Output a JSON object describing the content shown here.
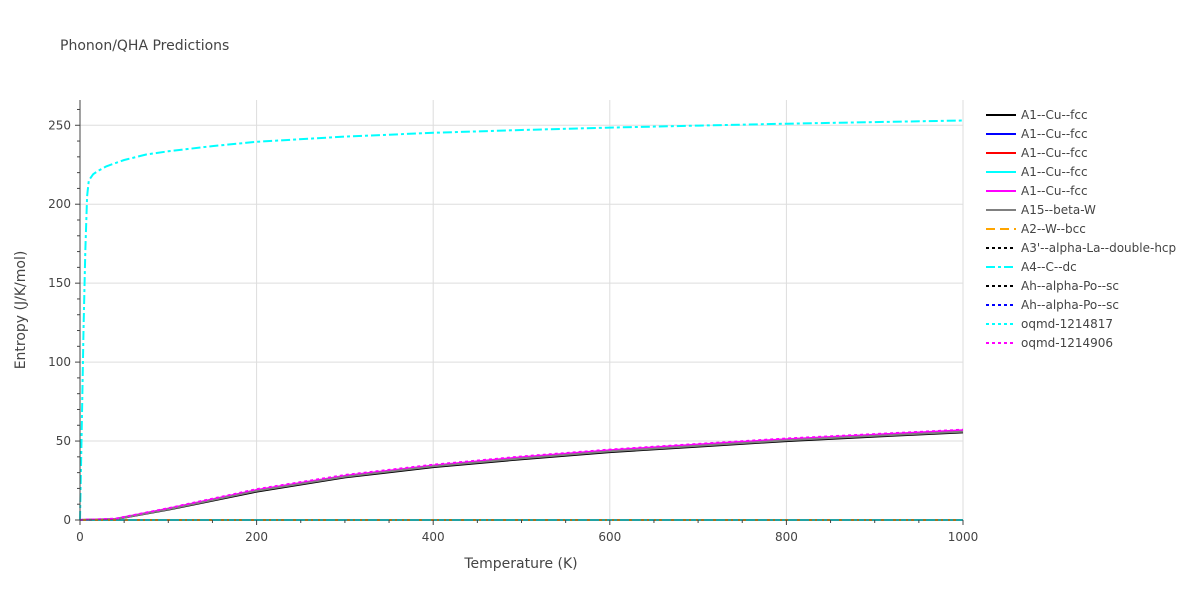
{
  "chart_data": {
    "type": "line",
    "title": "Phonon/QHA Predictions",
    "xlabel": "Temperature (K)",
    "ylabel": "Entropy (J/K/mol)",
    "xlim": [
      0,
      1000
    ],
    "ylim": [
      0,
      266
    ],
    "xticks": [
      0,
      200,
      400,
      600,
      800,
      1000
    ],
    "yticks": [
      0,
      50,
      100,
      150,
      200,
      250
    ],
    "grid": true,
    "legend_position": "right",
    "series": [
      {
        "name": "A1--Cu--fcc",
        "color": "#000000",
        "dash": "solid",
        "x": [
          0,
          40,
          100,
          200,
          300,
          400,
          500,
          600,
          700,
          800,
          900,
          1000
        ],
        "y": [
          0,
          0.5,
          6.5,
          18,
          27,
          33.5,
          38.5,
          43,
          46.5,
          50,
          52.8,
          55.5
        ]
      },
      {
        "name": "A1--Cu--fcc",
        "color": "#0000ff",
        "dash": "solid",
        "x": [
          0,
          1000
        ],
        "y": [
          0,
          0
        ]
      },
      {
        "name": "A1--Cu--fcc",
        "color": "#ff0000",
        "dash": "solid",
        "x": [
          0,
          1000
        ],
        "y": [
          0,
          0
        ]
      },
      {
        "name": "A1--Cu--fcc",
        "color": "#00ffff",
        "dash": "solid",
        "x": [
          0,
          1000
        ],
        "y": [
          0,
          0
        ]
      },
      {
        "name": "A1--Cu--fcc",
        "color": "#ff00ff",
        "dash": "solid",
        "x": [
          0,
          40,
          100,
          200,
          300,
          400,
          500,
          600,
          700,
          800,
          900,
          1000
        ],
        "y": [
          0,
          0.7,
          7.2,
          19,
          28,
          34.5,
          39.8,
          44.2,
          47.8,
          51.2,
          54,
          56.8
        ]
      },
      {
        "name": "A15--beta-W",
        "color": "#808080",
        "dash": "solid",
        "x": [
          0,
          40,
          100,
          200,
          300,
          400,
          500,
          600,
          700,
          800,
          900,
          1000
        ],
        "y": [
          0,
          0.5,
          6.8,
          18.5,
          27.5,
          34,
          39,
          43.5,
          47,
          50.5,
          53.3,
          56
        ]
      },
      {
        "name": "A2--W--bcc",
        "color": "#ffa500",
        "dash": "dash",
        "x": [
          0,
          1000
        ],
        "y": [
          0,
          0
        ]
      },
      {
        "name": "A3'--alpha-La--double-hcp",
        "color": "#000000",
        "dash": "dot",
        "x": [
          0,
          1000
        ],
        "y": [
          0,
          0
        ]
      },
      {
        "name": "A4--C--dc",
        "color": "#00ffff",
        "dash": "dashdot",
        "x": [
          0,
          2,
          4,
          6,
          8,
          10,
          15,
          20,
          30,
          50,
          75,
          100,
          150,
          200,
          300,
          400,
          500,
          600,
          700,
          800,
          900,
          1000
        ],
        "y": [
          0,
          60,
          120,
          170,
          205,
          215,
          219,
          221,
          224,
          228,
          231.5,
          233.5,
          236.8,
          239.5,
          242.8,
          245.2,
          247,
          248.5,
          249.8,
          251,
          252,
          253
        ]
      },
      {
        "name": "Ah--alpha-Po--sc",
        "color": "#000000",
        "dash": "dot",
        "x": [
          0,
          1000
        ],
        "y": [
          0,
          0
        ]
      },
      {
        "name": "Ah--alpha-Po--sc",
        "color": "#0000ff",
        "dash": "dot",
        "x": [
          0,
          1000
        ],
        "y": [
          0,
          0
        ]
      },
      {
        "name": "oqmd-1214817",
        "color": "#00ffff",
        "dash": "dot",
        "x": [
          0,
          1000
        ],
        "y": [
          0,
          0
        ]
      },
      {
        "name": "oqmd-1214906",
        "color": "#ff00ff",
        "dash": "dot",
        "x": [
          0,
          40,
          100,
          200,
          300,
          400,
          500,
          600,
          700,
          800,
          900,
          1000
        ],
        "y": [
          0,
          0.8,
          7.5,
          19.5,
          28.5,
          35,
          40.2,
          44.6,
          48.2,
          51.6,
          54.4,
          57.2
        ]
      }
    ]
  }
}
